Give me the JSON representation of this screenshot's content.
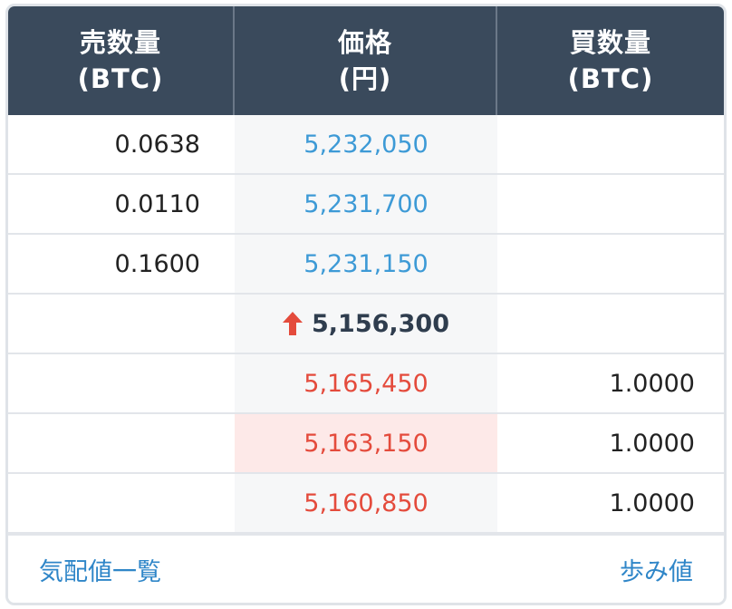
{
  "header": {
    "sell_qty": "売数量",
    "sell_unit": "(BTC)",
    "price": "価格",
    "price_unit": "(円)",
    "buy_qty": "買数量",
    "buy_unit": "(BTC)"
  },
  "asks": [
    {
      "qty": "0.0638",
      "price": "5,232,050"
    },
    {
      "qty": "0.0110",
      "price": "5,231,700"
    },
    {
      "qty": "0.1600",
      "price": "5,231,150"
    }
  ],
  "last": {
    "price": "5,156,300",
    "direction": "up",
    "arrow_icon": "up-arrow-icon",
    "color": "#e44b3c"
  },
  "bids": [
    {
      "price": "5,165,450",
      "qty": "1.0000"
    },
    {
      "price": "5,163,150",
      "qty": "1.0000"
    },
    {
      "price": "5,160,850",
      "qty": "1.0000"
    }
  ],
  "footer": {
    "order_book_link": "気配値一覧",
    "trades_link": "歩み値"
  },
  "colors": {
    "header_bg": "#3a4a5c",
    "ask": "#3d9ad6",
    "bid": "#e44b3c",
    "highlight": "#fde9e8"
  }
}
